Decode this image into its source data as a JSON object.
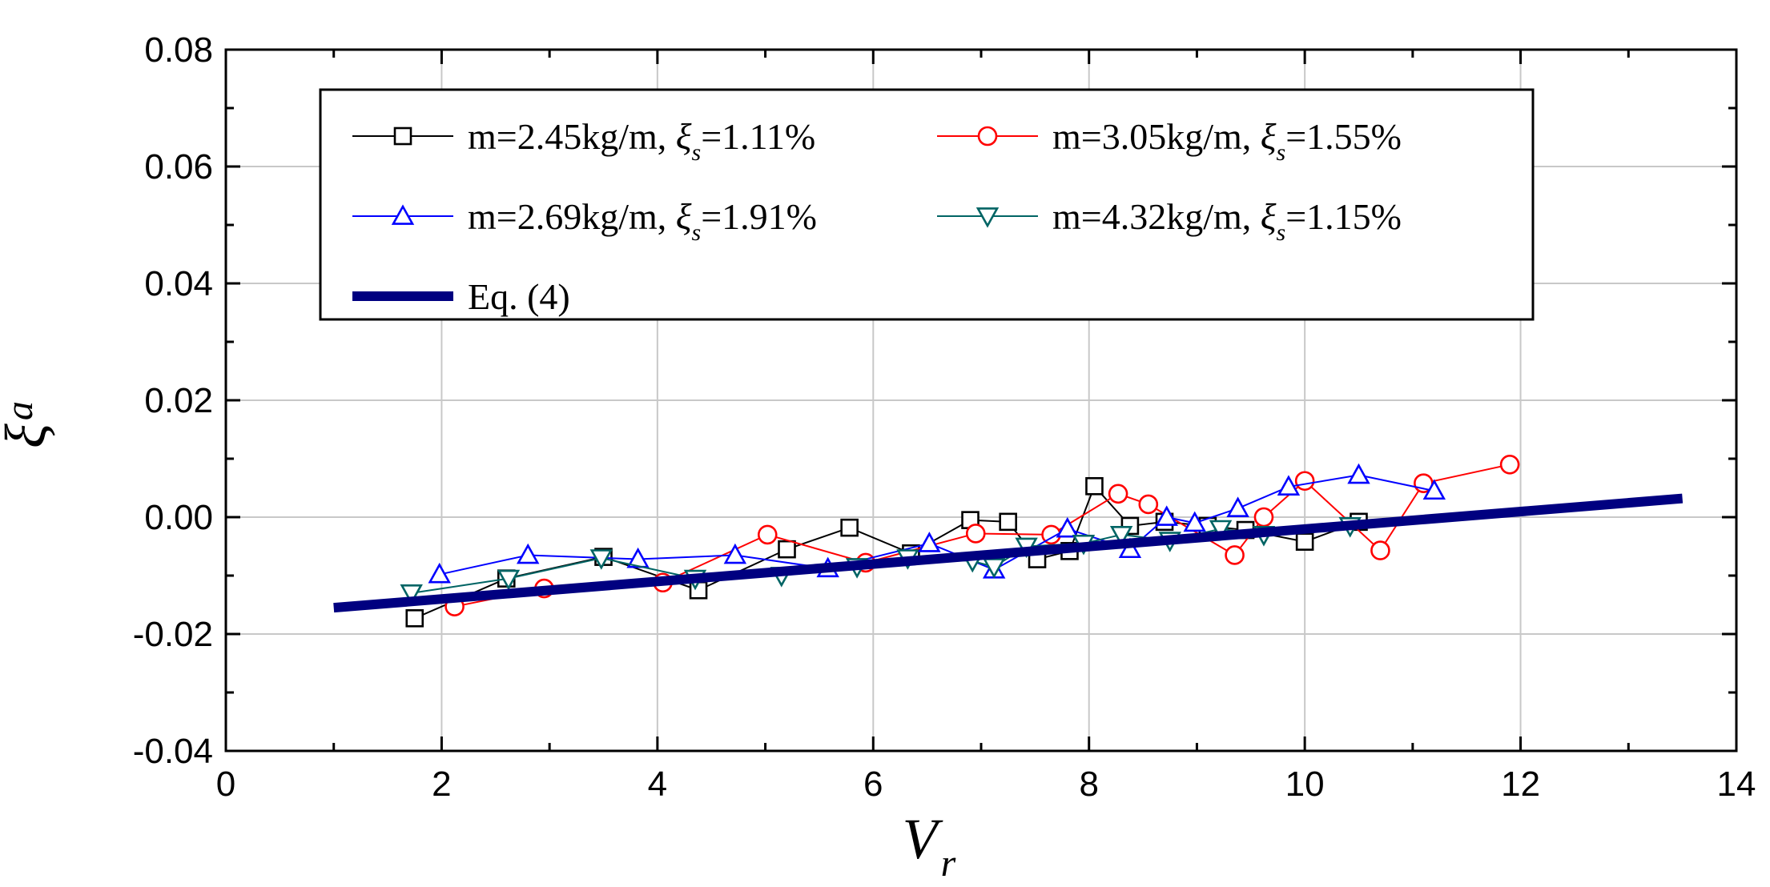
{
  "chart_data": {
    "type": "line",
    "title": "",
    "xlabel": "V",
    "xlabel_sub": "r",
    "ylabel": "ξ",
    "ylabel_sub": "a",
    "xlim": [
      0,
      14
    ],
    "ylim": [
      -0.04,
      0.08
    ],
    "xticks": [
      0,
      2,
      4,
      6,
      8,
      10,
      12,
      14
    ],
    "xtick_labels": [
      "0",
      "2",
      "4",
      "6",
      "8",
      "10",
      "12",
      "14"
    ],
    "yticks": [
      -0.04,
      -0.02,
      0.0,
      0.02,
      0.04,
      0.06,
      0.08
    ],
    "ytick_labels": [
      "-0.04",
      "-0.02",
      "0.00",
      "0.02",
      "0.04",
      "0.06",
      "0.08"
    ],
    "grid": true,
    "legend_position": "top",
    "series": [
      {
        "name": "m=2.45kg/m, ",
        "xi_label": "ξ",
        "xi_sub": "s",
        "value_label": "=1.11%",
        "color": "#000000",
        "marker": "square",
        "x": [
          1.75,
          2.6,
          3.5,
          4.38,
          5.2,
          5.78,
          6.35,
          6.9,
          7.25,
          7.52,
          7.82,
          8.05,
          8.38,
          8.7,
          9.1,
          9.45,
          10.0,
          10.5
        ],
        "y": [
          -0.0173,
          -0.0105,
          -0.0068,
          -0.0125,
          -0.0055,
          -0.0018,
          -0.0062,
          -0.0005,
          -0.0008,
          -0.0072,
          -0.0058,
          0.0053,
          -0.0015,
          -0.0008,
          -0.0015,
          -0.0022,
          -0.0042,
          -0.0008
        ]
      },
      {
        "name": "m=3.05kg/m, ",
        "xi_label": "ξ",
        "xi_sub": "s",
        "value_label": "=1.55%",
        "color": "#ff0000",
        "marker": "circle",
        "x": [
          2.12,
          2.95,
          4.05,
          5.02,
          5.93,
          6.95,
          7.65,
          8.27,
          8.55,
          9.35,
          9.62,
          10.0,
          10.7,
          11.1,
          11.9
        ],
        "y": [
          -0.0153,
          -0.0122,
          -0.0112,
          -0.003,
          -0.0078,
          -0.0028,
          -0.003,
          0.004,
          0.0022,
          -0.0065,
          0.0,
          0.0062,
          -0.0057,
          0.0058,
          0.009
        ]
      },
      {
        "name": "m=2.69kg/m, ",
        "xi_label": "ξ",
        "xi_sub": "s",
        "value_label": "=1.91%",
        "color": "#0000ff",
        "marker": "triangle-up",
        "x": [
          1.98,
          2.8,
          3.82,
          4.72,
          5.58,
          6.52,
          7.12,
          7.8,
          8.38,
          8.72,
          8.98,
          9.38,
          9.85,
          10.5,
          11.2
        ],
        "y": [
          -0.0098,
          -0.0065,
          -0.0072,
          -0.0065,
          -0.0088,
          -0.0045,
          -0.009,
          -0.002,
          -0.0055,
          0.0,
          -0.001,
          0.0015,
          0.0052,
          0.0072,
          0.0045
        ]
      },
      {
        "name": "m=4.32kg/m, ",
        "xi_label": "ξ",
        "xi_sub": "s",
        "value_label": "=1.15%",
        "color": "#006464",
        "marker": "triangle-down",
        "x": [
          1.72,
          2.62,
          3.48,
          4.35,
          5.15,
          5.85,
          6.32,
          6.92,
          7.12,
          7.42,
          7.95,
          8.3,
          8.75,
          9.22,
          9.62,
          10.42
        ],
        "y": [
          -0.013,
          -0.0105,
          -0.007,
          -0.0105,
          -0.01,
          -0.0085,
          -0.007,
          -0.0075,
          -0.0085,
          -0.005,
          -0.0045,
          -0.003,
          -0.004,
          -0.002,
          -0.003,
          -0.0015
        ]
      },
      {
        "name": "Eq. (4)",
        "color": "#000080",
        "marker": "none",
        "thick": true,
        "x": [
          1.0,
          13.5
        ],
        "y": [
          -0.0155,
          0.0032
        ]
      }
    ]
  }
}
